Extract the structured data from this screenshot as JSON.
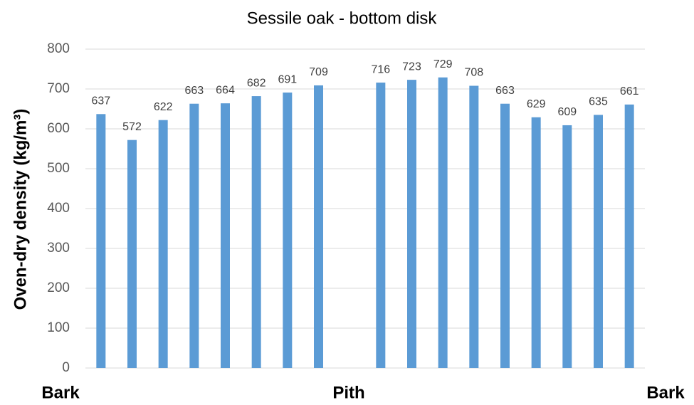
{
  "chart_data": {
    "type": "bar",
    "title": "Sessile oak - bottom disk",
    "y_label": "Oven-dry density (kg/m³)",
    "categories": [
      null,
      null,
      null,
      null,
      null,
      null,
      null,
      null,
      null,
      null,
      null,
      null,
      null,
      null,
      null,
      null,
      null,
      null
    ],
    "values": [
      637,
      572,
      622,
      663,
      664,
      682,
      691,
      709,
      null,
      716,
      723,
      729,
      708,
      663,
      629,
      609,
      635,
      661
    ],
    "color": "#5b9bd5",
    "ylim": [
      0,
      800
    ],
    "yticks": [
      0,
      100,
      200,
      300,
      400,
      500,
      600,
      700,
      800
    ],
    "grid": true,
    "x_annotations": [
      "Bark",
      "Pith",
      "Bark"
    ]
  }
}
